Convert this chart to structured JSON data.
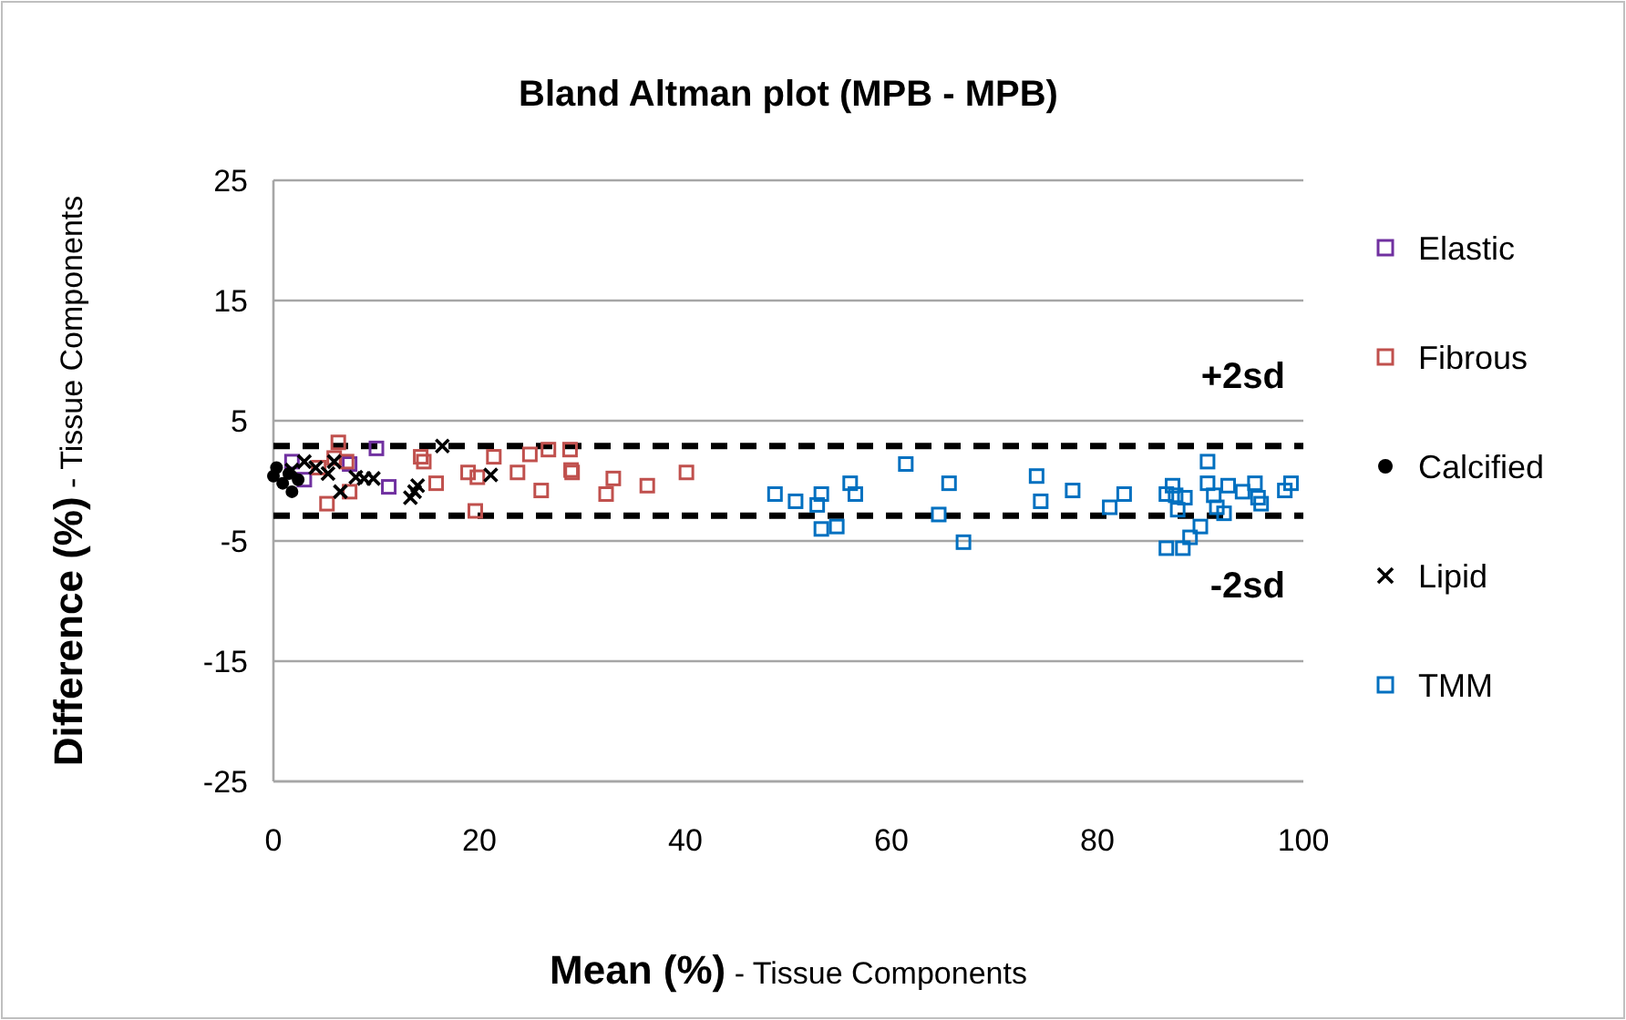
{
  "chart_data": {
    "type": "scatter",
    "title": "Bland Altman plot (MPB - MPB)",
    "xlabel": "Mean (%) - Tissue Components",
    "ylabel": "Difference (%)  - Tissue Components",
    "xlim": [
      0,
      100
    ],
    "xticks": [
      0,
      20,
      40,
      60,
      80,
      100
    ],
    "ylim": [
      -25,
      25
    ],
    "yticks": [
      -25,
      -15,
      -5,
      5,
      15,
      25
    ],
    "grid": "y",
    "legend": "right",
    "ref_lines": [
      {
        "axis": "y",
        "value": 2.9,
        "label": "+2sd",
        "color": "#000000",
        "line_style": "dashed"
      },
      {
        "axis": "y",
        "value": -2.9,
        "label": "-2sd",
        "color": "#000000",
        "line_style": "dashed"
      }
    ],
    "series": [
      {
        "name": "Elastic",
        "color": "#7030a0",
        "marker": "square",
        "x": [
          10.0,
          11.2,
          7.4,
          1.8,
          3.0
        ],
        "values": [
          2.7,
          -0.5,
          1.4,
          1.6,
          0.1
        ]
      },
      {
        "name": "Fibrous",
        "color": "#c0504d",
        "marker": "square",
        "x": [
          6.3,
          5.2,
          7.4,
          14.3,
          14.6,
          15.8,
          18.9,
          19.8,
          19.6,
          21.4,
          23.7,
          24.9,
          26.0,
          26.7,
          28.8,
          28.9,
          29.0,
          32.3,
          33.0,
          36.3,
          40.1,
          5.9,
          4.4,
          7.1
        ],
        "values": [
          3.2,
          -1.9,
          -0.9,
          2.0,
          1.6,
          -0.2,
          0.7,
          0.3,
          -2.5,
          2.0,
          0.7,
          2.2,
          -0.8,
          2.6,
          2.6,
          0.9,
          0.7,
          -1.1,
          0.2,
          -0.4,
          0.7,
          1.9,
          1.1,
          1.6
        ]
      },
      {
        "name": "Calcified",
        "color": "#000000",
        "marker": "circle",
        "x": [
          0.0,
          0.9,
          1.8,
          0.3,
          1.5,
          2.4
        ],
        "values": [
          0.4,
          -0.2,
          -0.9,
          1.1,
          0.6,
          0.1
        ]
      },
      {
        "name": "Lipid",
        "color": "#000000",
        "marker": "cross",
        "x": [
          16.4,
          21.1,
          13.3,
          14.0,
          13.7,
          9.7,
          8.8,
          8.0,
          6.5,
          5.9,
          4.1,
          3.0,
          5.3,
          1.8
        ],
        "values": [
          2.9,
          0.5,
          -1.4,
          -0.4,
          -0.9,
          0.2,
          0.2,
          0.3,
          -0.9,
          1.6,
          1.1,
          1.6,
          0.6,
          0.9
        ]
      },
      {
        "name": "TMM",
        "color": "#0070c0",
        "marker": "square",
        "x": [
          48.7,
          50.7,
          52.8,
          53.2,
          53.2,
          54.7,
          56.0,
          56.5,
          61.4,
          64.6,
          65.6,
          67.0,
          74.1,
          74.5,
          77.6,
          81.2,
          82.6,
          86.7,
          87.3,
          87.6,
          88.5,
          87.8,
          86.7,
          88.3,
          89.0,
          90.0,
          90.7,
          90.7,
          91.3,
          91.6,
          92.3,
          92.7,
          94.1,
          95.3,
          95.6,
          95.9,
          98.2,
          98.8
        ],
        "values": [
          -1.1,
          -1.7,
          -2.0,
          -1.1,
          -4.0,
          -3.8,
          -0.2,
          -1.1,
          1.4,
          -2.8,
          -0.2,
          -5.1,
          0.4,
          -1.7,
          -0.8,
          -2.2,
          -1.1,
          -1.1,
          -0.4,
          -1.2,
          -1.4,
          -2.4,
          -5.6,
          -5.6,
          -4.7,
          -3.8,
          1.6,
          -0.2,
          -1.2,
          -2.2,
          -2.7,
          -0.4,
          -0.9,
          -0.2,
          -1.4,
          -1.9,
          -0.8,
          -0.2
        ]
      }
    ]
  }
}
